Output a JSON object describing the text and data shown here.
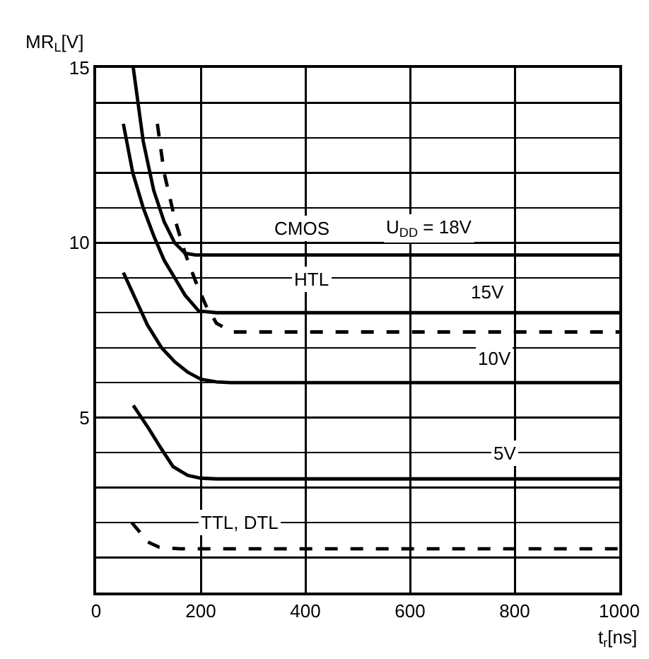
{
  "chart_data": {
    "type": "line",
    "xlabel": "t$_{r}$[ns]",
    "ylabel": "MR$_{L}$[V]",
    "xlim": [
      0,
      1000
    ],
    "ylim": [
      0,
      15
    ],
    "xticks": [
      0,
      200,
      400,
      600,
      800,
      1000
    ],
    "yticks": [
      {
        "value": 0,
        "label": null
      },
      {
        "value": 1,
        "label": null
      },
      {
        "value": 2,
        "label": null
      },
      {
        "value": 3,
        "label": null
      },
      {
        "value": 4,
        "label": null
      },
      5,
      {
        "value": 6,
        "label": null
      },
      {
        "value": 7,
        "label": null
      },
      {
        "value": 8,
        "label": null
      },
      {
        "value": 9,
        "label": null
      },
      10,
      {
        "value": 11,
        "label": null
      },
      {
        "value": 12,
        "label": null
      },
      {
        "value": 13,
        "label": null
      },
      {
        "value": 14,
        "label": null
      },
      15
    ],
    "grid": true,
    "marker": "none",
    "series": [
      {
        "color": "#000000",
        "line_style": "solid",
        "x": [
          71,
          90,
          110,
          130,
          150,
          170,
          190,
          300,
          1000
        ],
        "values": [
          15,
          12.9,
          11.5,
          10.6,
          10.0,
          9.7,
          9.65,
          9.65,
          9.65
        ]
      },
      {
        "color": "#000000",
        "line_style": "dashed",
        "x": [
          117,
          130,
          150,
          170,
          190,
          210,
          230,
          260,
          400,
          1000
        ],
        "values": [
          13.4,
          12.0,
          10.7,
          9.7,
          8.9,
          8.2,
          7.7,
          7.45,
          7.45,
          7.45
        ]
      },
      {
        "color": "#000000",
        "line_style": "solid",
        "x": [
          52,
          70,
          90,
          110,
          130,
          150,
          170,
          196,
          230,
          400,
          1000
        ],
        "values": [
          13.4,
          12.0,
          11.0,
          10.2,
          9.5,
          9.0,
          8.5,
          8.05,
          8.0,
          8.0,
          8.0
        ]
      },
      {
        "color": "#000000",
        "line_style": "solid",
        "x": [
          52,
          75,
          98,
          125,
          150,
          175,
          200,
          230,
          256,
          400,
          1000
        ],
        "values": [
          9.15,
          8.4,
          7.65,
          7.0,
          6.6,
          6.3,
          6.1,
          6.02,
          6.0,
          6.0,
          6.0
        ]
      },
      {
        "color": "#000000",
        "line_style": "solid",
        "x": [
          71,
          100,
          125,
          147,
          175,
          200,
          230,
          256,
          400,
          1000
        ],
        "values": [
          5.35,
          4.7,
          4.1,
          3.6,
          3.35,
          3.27,
          3.25,
          3.25,
          3.25,
          3.25
        ]
      },
      {
        "color": "#000000",
        "line_style": "dashed",
        "x": [
          68,
          85,
          98,
          120,
          160,
          400,
          1000
        ],
        "values": [
          2.0,
          1.7,
          1.45,
          1.3,
          1.25,
          1.25,
          1.25
        ]
      }
    ],
    "annotations": [
      {
        "text": "CMOS",
        "x": 392,
        "y": 10.4
      },
      "U$_{DD}$ = 18V",
      {
        "text": "HTL",
        "x": 411,
        "y": 8.95
      },
      {
        "text": "15V",
        "x": 747,
        "y": 8.6
      },
      {
        "text": "10V",
        "x": 760,
        "y": 6.7
      },
      {
        "text": "5V",
        "x": 782,
        "y": 4.0
      },
      "TTL, DTL"
    ]
  }
}
